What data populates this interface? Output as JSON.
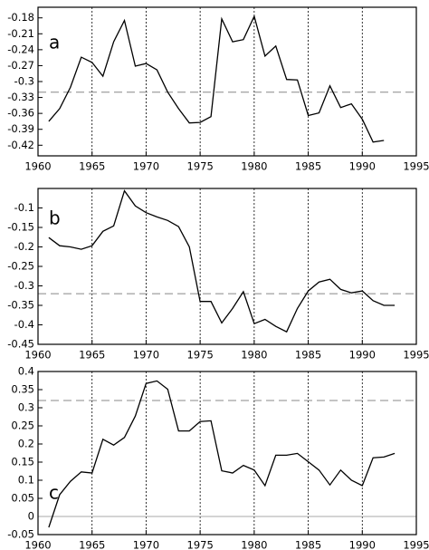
{
  "chart_data": [
    {
      "type": "line",
      "annotation": "a",
      "color": "#000000",
      "x": [
        1961,
        1962,
        1963,
        1964,
        1965,
        1966,
        1967,
        1968,
        1969,
        1970,
        1971,
        1972,
        1973,
        1974,
        1975,
        1976,
        1977,
        1978,
        1979,
        1980,
        1981,
        1982,
        1983,
        1984,
        1985,
        1986,
        1987,
        1988,
        1989,
        1990,
        1991,
        1992
      ],
      "values": [
        -0.375,
        -0.351,
        -0.311,
        -0.254,
        -0.264,
        -0.29,
        -0.225,
        -0.185,
        -0.271,
        -0.266,
        -0.278,
        -0.32,
        -0.351,
        -0.378,
        -0.377,
        -0.366,
        -0.182,
        -0.225,
        -0.221,
        -0.177,
        -0.252,
        -0.233,
        -0.296,
        -0.297,
        -0.364,
        -0.359,
        -0.308,
        -0.349,
        -0.342,
        -0.371,
        -0.414,
        -0.411
      ],
      "xlim": [
        1960,
        1995
      ],
      "xticks": [
        1960,
        1965,
        1970,
        1975,
        1980,
        1985,
        1990,
        1995
      ],
      "ylim": [
        -0.44,
        -0.16
      ],
      "yticks": [
        -0.18,
        -0.21,
        -0.24,
        -0.27,
        -0.3,
        -0.33,
        -0.36,
        -0.39,
        -0.42
      ],
      "xgrid": true,
      "reference_lines": [
        {
          "value": -0.32,
          "style": "dashed"
        }
      ]
    },
    {
      "type": "line",
      "annotation": "b",
      "color": "#000000",
      "x": [
        1961,
        1962,
        1963,
        1964,
        1965,
        1966,
        1967,
        1968,
        1969,
        1970,
        1971,
        1972,
        1973,
        1974,
        1975,
        1976,
        1977,
        1978,
        1979,
        1980,
        1981,
        1982,
        1983,
        1984,
        1985,
        1986,
        1987,
        1988,
        1989,
        1990,
        1991,
        1992,
        1993
      ],
      "values": [
        -0.176,
        -0.197,
        -0.2,
        -0.206,
        -0.197,
        -0.16,
        -0.146,
        -0.056,
        -0.095,
        -0.112,
        -0.123,
        -0.132,
        -0.148,
        -0.2,
        -0.34,
        -0.34,
        -0.395,
        -0.358,
        -0.315,
        -0.397,
        -0.386,
        -0.404,
        -0.418,
        -0.358,
        -0.313,
        -0.29,
        -0.283,
        -0.309,
        -0.318,
        -0.313,
        -0.338,
        -0.35,
        -0.35
      ],
      "xlim": [
        1960,
        1995
      ],
      "xticks": [
        1960,
        1965,
        1970,
        1975,
        1980,
        1985,
        1990,
        1995
      ],
      "ylim": [
        -0.45,
        -0.05
      ],
      "yticks": [
        -0.1,
        -0.15,
        -0.2,
        -0.25,
        -0.3,
        -0.35,
        -0.4,
        -0.45
      ],
      "xgrid": true,
      "reference_lines": [
        {
          "value": -0.32,
          "style": "dashed"
        }
      ]
    },
    {
      "type": "line",
      "annotation": "c",
      "color": "#000000",
      "x": [
        1961,
        1962,
        1963,
        1964,
        1965,
        1966,
        1967,
        1968,
        1969,
        1970,
        1971,
        1972,
        1973,
        1974,
        1975,
        1976,
        1977,
        1978,
        1979,
        1980,
        1981,
        1982,
        1983,
        1984,
        1985,
        1986,
        1987,
        1988,
        1989,
        1990,
        1991,
        1992,
        1993
      ],
      "values": [
        -0.03,
        0.06,
        0.097,
        0.123,
        0.12,
        0.213,
        0.197,
        0.218,
        0.277,
        0.367,
        0.374,
        0.351,
        0.236,
        0.236,
        0.262,
        0.264,
        0.126,
        0.12,
        0.141,
        0.128,
        0.085,
        0.169,
        0.169,
        0.174,
        0.151,
        0.128,
        0.087,
        0.128,
        0.1,
        0.085,
        0.162,
        0.164,
        0.174
      ],
      "xlim": [
        1960,
        1995
      ],
      "xticks": [
        1960,
        1965,
        1970,
        1975,
        1980,
        1985,
        1990,
        1995
      ],
      "ylim": [
        -0.05,
        0.4
      ],
      "yticks": [
        -0.05,
        0,
        0.05,
        0.1,
        0.15,
        0.2,
        0.25,
        0.3,
        0.35,
        0.4
      ],
      "xgrid": true,
      "reference_lines": [
        {
          "value": 0.32,
          "style": "dashed"
        },
        {
          "value": 0,
          "style": "solid"
        }
      ]
    }
  ]
}
